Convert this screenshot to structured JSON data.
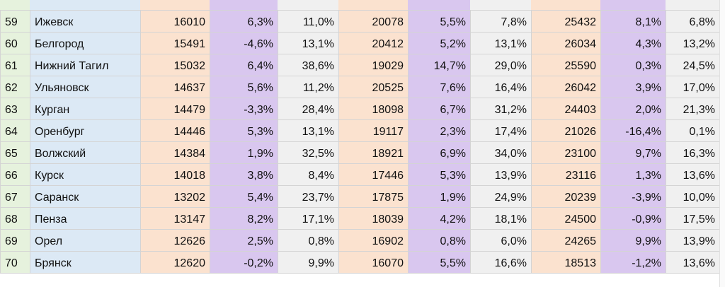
{
  "rows": [
    {
      "n": "59",
      "city": "Ижевск",
      "a": "16010",
      "b": "6,3%",
      "c": "11,0%",
      "d": "20078",
      "e": "5,5%",
      "f": "7,8%",
      "g": "25432",
      "h": "8,1%",
      "i": "6,8%"
    },
    {
      "n": "60",
      "city": "Белгород",
      "a": "15491",
      "b": "-4,6%",
      "c": "13,1%",
      "d": "20412",
      "e": "5,2%",
      "f": "13,1%",
      "g": "26034",
      "h": "4,3%",
      "i": "13,2%"
    },
    {
      "n": "61",
      "city": "Нижний Тагил",
      "a": "15032",
      "b": "6,4%",
      "c": "38,6%",
      "d": "19029",
      "e": "14,7%",
      "f": "29,0%",
      "g": "25590",
      "h": "0,3%",
      "i": "24,5%"
    },
    {
      "n": "62",
      "city": "Ульяновск",
      "a": "14637",
      "b": "5,6%",
      "c": "11,2%",
      "d": "20525",
      "e": "7,6%",
      "f": "16,4%",
      "g": "26042",
      "h": "3,9%",
      "i": "17,0%"
    },
    {
      "n": "63",
      "city": "Курган",
      "a": "14479",
      "b": "-3,3%",
      "c": "28,4%",
      "d": "18098",
      "e": "6,7%",
      "f": "31,2%",
      "g": "24403",
      "h": "2,0%",
      "i": "21,3%"
    },
    {
      "n": "64",
      "city": "Оренбург",
      "a": "14446",
      "b": "5,3%",
      "c": "13,1%",
      "d": "19117",
      "e": "2,3%",
      "f": "17,4%",
      "g": "21026",
      "h": "-16,4%",
      "i": "0,1%"
    },
    {
      "n": "65",
      "city": "Волжский",
      "a": "14384",
      "b": "1,9%",
      "c": "32,5%",
      "d": "18921",
      "e": "6,9%",
      "f": "34,0%",
      "g": "23100",
      "h": "9,7%",
      "i": "16,3%"
    },
    {
      "n": "66",
      "city": "Курск",
      "a": "14018",
      "b": "3,8%",
      "c": "8,4%",
      "d": "17446",
      "e": "5,3%",
      "f": "13,9%",
      "g": "23116",
      "h": "1,3%",
      "i": "13,6%"
    },
    {
      "n": "67",
      "city": "Саранск",
      "a": "13202",
      "b": "5,4%",
      "c": "23,7%",
      "d": "17875",
      "e": "1,9%",
      "f": "24,9%",
      "g": "20239",
      "h": "-3,9%",
      "i": "10,0%"
    },
    {
      "n": "68",
      "city": "Пенза",
      "a": "13147",
      "b": "8,2%",
      "c": "17,1%",
      "d": "18039",
      "e": "4,2%",
      "f": "18,1%",
      "g": "24500",
      "h": "-0,9%",
      "i": "17,5%"
    },
    {
      "n": "69",
      "city": "Орел",
      "a": "12626",
      "b": "2,5%",
      "c": "0,8%",
      "d": "16902",
      "e": "0,8%",
      "f": "6,0%",
      "g": "24265",
      "h": "9,9%",
      "i": "13,9%"
    },
    {
      "n": "70",
      "city": "Брянск",
      "a": "12620",
      "b": "-0,2%",
      "c": "9,9%",
      "d": "16070",
      "e": "5,5%",
      "f": "16,6%",
      "g": "18513",
      "h": "-1,2%",
      "i": "13,6%"
    }
  ]
}
